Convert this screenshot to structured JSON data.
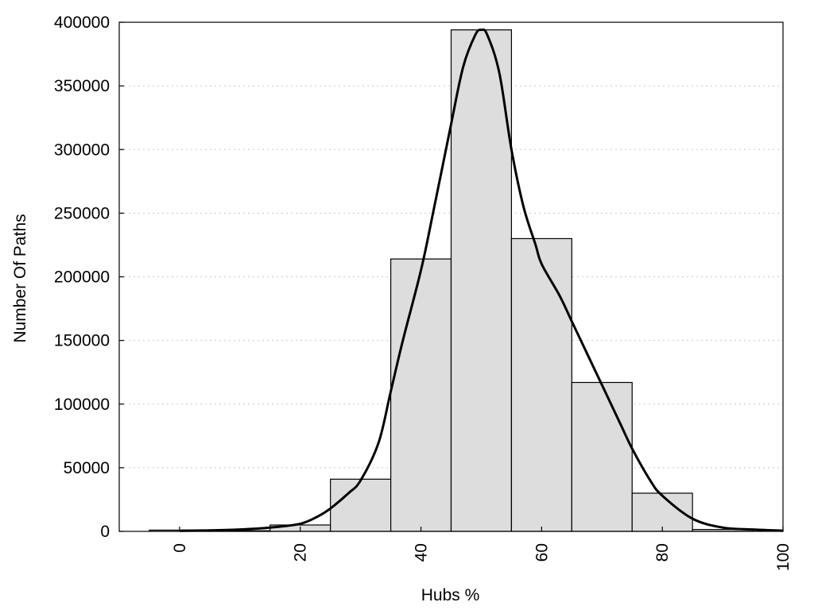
{
  "chart_data": {
    "type": "bar",
    "xlabel": "Hubs %",
    "ylabel": "Number Of Paths",
    "xlim": [
      -10,
      100
    ],
    "ylim": [
      0,
      400000
    ],
    "grid": "horizontal dotted",
    "bar_fill": "#dddddd",
    "line_color": "#000000",
    "x_ticks": [
      0,
      20,
      40,
      60,
      80,
      100
    ],
    "y_ticks": [
      0,
      50000,
      100000,
      150000,
      200000,
      250000,
      300000,
      350000,
      400000
    ],
    "bins": [
      {
        "x0": -5,
        "x1": 5,
        "value": 1000
      },
      {
        "x0": 5,
        "x1": 15,
        "value": 500
      },
      {
        "x0": 15,
        "x1": 25,
        "value": 5000
      },
      {
        "x0": 25,
        "x1": 35,
        "value": 41000
      },
      {
        "x0": 35,
        "x1": 45,
        "value": 214000
      },
      {
        "x0": 45,
        "x1": 55,
        "value": 394000
      },
      {
        "x0": 55,
        "x1": 65,
        "value": 230000
      },
      {
        "x0": 65,
        "x1": 75,
        "value": 117000
      },
      {
        "x0": 75,
        "x1": 85,
        "value": 30000
      },
      {
        "x0": 85,
        "x1": 95,
        "value": 1500
      }
    ],
    "series": [
      {
        "type": "line",
        "x": [
          0,
          5,
          10,
          15,
          20,
          23,
          25,
          28,
          30,
          33,
          35,
          37,
          40,
          42,
          45,
          47,
          49,
          50,
          51,
          53,
          55,
          57,
          59,
          60,
          63,
          65,
          68,
          70,
          73,
          75,
          78,
          80,
          85,
          90,
          95,
          100
        ],
        "y": [
          500,
          800,
          1500,
          3000,
          6000,
          12000,
          18000,
          30000,
          40000,
          70000,
          110000,
          150000,
          205000,
          250000,
          320000,
          365000,
          390000,
          394000,
          390000,
          360000,
          300000,
          255000,
          225000,
          210000,
          185000,
          165000,
          135000,
          115000,
          85000,
          65000,
          40000,
          28000,
          10000,
          3000,
          1500,
          500
        ]
      }
    ]
  }
}
